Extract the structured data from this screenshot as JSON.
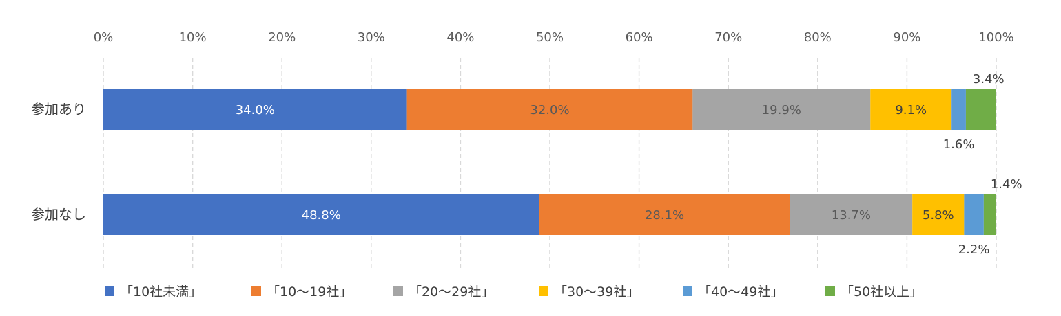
{
  "chart_data": {
    "type": "bar",
    "orientation": "horizontal",
    "stacked": "percent",
    "categories": [
      "参加あり",
      "参加なし"
    ],
    "series": [
      {
        "name": "「10社未満」",
        "values": [
          34.0,
          48.8
        ],
        "color": "#4472C4",
        "label_color": "#ffffff"
      },
      {
        "name": "「10〜19社」",
        "values": [
          32.0,
          28.1
        ],
        "color": "#ED7D31",
        "label_color": "#595959"
      },
      {
        "name": "「20〜29社」",
        "values": [
          19.9,
          13.7
        ],
        "color": "#A5A5A5",
        "label_color": "#595959"
      },
      {
        "name": "「30〜39社」",
        "values": [
          9.1,
          5.8
        ],
        "color": "#FFC000",
        "label_color": "#404040"
      },
      {
        "name": "「40〜49社」",
        "values": [
          1.6,
          2.2
        ],
        "color": "#5B9BD5",
        "label_color": "#404040"
      },
      {
        "name": "「50社以上」",
        "values": [
          3.4,
          1.4
        ],
        "color": "#70AD47",
        "label_color": "#404040"
      }
    ],
    "data_labels": [
      [
        "34.0%",
        "48.8%"
      ],
      [
        "32.0%",
        "28.1%"
      ],
      [
        "19.9%",
        "13.7%"
      ],
      [
        "9.1%",
        "5.8%"
      ],
      [
        "1.6%",
        "2.2%"
      ],
      [
        "3.4%",
        "1.4%"
      ]
    ],
    "xlim": [
      0,
      100
    ],
    "x_ticks": [
      0,
      10,
      20,
      30,
      40,
      50,
      60,
      70,
      80,
      90,
      100
    ],
    "x_tick_labels": [
      "0%",
      "10%",
      "20%",
      "30%",
      "40%",
      "50%",
      "60%",
      "70%",
      "80%",
      "90%",
      "100%"
    ],
    "x_axis_position": "top",
    "grid": true,
    "legend_position": "bottom",
    "title": "",
    "xlabel": "",
    "ylabel": ""
  }
}
